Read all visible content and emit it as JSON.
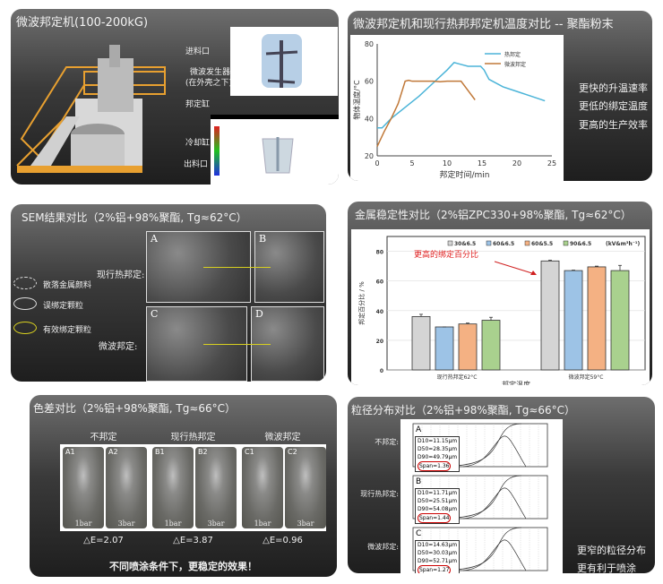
{
  "panel1": {
    "title": "微波邦定机(100-200kG)",
    "callouts": [
      "进料口",
      "微波发生器",
      "(在外壳之下)",
      "邦定缸",
      "冷却缸",
      "出料口"
    ]
  },
  "panel2": {
    "title": "微波邦定机和现行热邦邦定机温度对比 -- 聚酯粉末",
    "points": [
      "更快的升温速率",
      "更低的绑定温度",
      "更高的生产效率"
    ]
  },
  "panel3": {
    "title": "SEM结果对比（2%铝+98%聚酯, Tg≈62°C）",
    "row_labels": [
      "现行热邦定:",
      "微波邦定:"
    ],
    "image_labels": [
      "A",
      "B",
      "C",
      "D"
    ],
    "legend": [
      {
        "label": "散落金属颜料",
        "style": "dashed-white"
      },
      {
        "label": "误绑定颗粒",
        "style": "solid-white"
      },
      {
        "label": "有效绑定颗粒",
        "style": "solid-yellow"
      }
    ]
  },
  "panel4": {
    "title": "金属稳定性对比（2%铝ZPC330+98%聚酯, Tg≈62°C）"
  },
  "panel5": {
    "title": "色差对比（2%铝+98%聚酯, Tg≈66°C）",
    "groups": [
      {
        "label": "不邦定",
        "plates": [
          "A1",
          "A2"
        ],
        "pressures": [
          "1bar",
          "3bar"
        ],
        "delta_e": "△E=2.07"
      },
      {
        "label": "现行热邦定",
        "plates": [
          "B1",
          "B2"
        ],
        "pressures": [
          "1bar",
          "3bar"
        ],
        "delta_e": "△E=3.87"
      },
      {
        "label": "微波邦定",
        "plates": [
          "C1",
          "C2"
        ],
        "pressures": [
          "1bar",
          "3bar"
        ],
        "delta_e": "△E=0.96"
      }
    ],
    "footer": "不同喷涂条件下，更稳定的效果！"
  },
  "panel6": {
    "title": "粒径分布对比（2%铝+98%聚酯, Tg≈66°C）",
    "rows": [
      {
        "label": "不邦定:",
        "letter": "A",
        "d10": "D10=11.15μm",
        "d50": "D50=28.35μm",
        "d90": "D90=49.79μm",
        "span": "Span=1.36"
      },
      {
        "label": "现行热邦定:",
        "letter": "B",
        "d10": "D10=11.71μm",
        "d50": "D50=25.51μm",
        "d90": "D90=54.08μm",
        "span": "Span=1.44"
      },
      {
        "label": "微波邦定:",
        "letter": "C",
        "d10": "D10=14.63μm",
        "d50": "D50=30.03μm",
        "d90": "D90=52.71μm",
        "span": "Span=1.27"
      }
    ],
    "points": [
      "更窄的粒径分布",
      "更有利于喷涂"
    ]
  },
  "chart_data": [
    {
      "type": "line",
      "title": "",
      "xlabel": "邦定时间/min",
      "ylabel": "物体温度/°C",
      "xlim": [
        0,
        25
      ],
      "ylim": [
        20,
        80
      ],
      "xticks": [
        "0",
        "5",
        "10",
        "15",
        "20",
        "25"
      ],
      "yticks": [
        "20",
        "40",
        "60",
        "80"
      ],
      "legend_position": "top-right",
      "series": [
        {
          "name": "热邦定",
          "color": "#4bb4d8",
          "x": [
            0,
            0.7,
            2,
            4,
            6,
            8,
            10,
            11,
            12,
            13,
            14,
            14.8,
            15.3,
            16,
            18,
            20,
            22,
            24
          ],
          "y": [
            35,
            35,
            40,
            46,
            52,
            59,
            66,
            70,
            69,
            68,
            68,
            68,
            66,
            61,
            57,
            54.5,
            52,
            49.5
          ]
        },
        {
          "name": "微波邦定",
          "color": "#c07838",
          "x": [
            0,
            1,
            2,
            3,
            4,
            4.5,
            5,
            8,
            9,
            10,
            12,
            13,
            14
          ],
          "y": [
            25,
            33,
            40,
            48,
            60,
            60.5,
            60,
            60,
            59.7,
            60,
            60,
            55,
            50
          ]
        }
      ]
    },
    {
      "type": "bar",
      "title": "",
      "xlabel": "邦定温度",
      "ylabel": "邦定百分比 / %",
      "ylim": [
        0,
        90
      ],
      "yticks": [
        "0",
        "20",
        "40",
        "60",
        "80"
      ],
      "categories": [
        "现行热邦定62°C",
        "微波邦定59°C"
      ],
      "legend_unit": "(kV&m³h⁻¹)",
      "legend_position": "top",
      "annotation": "更高的绑定百分比",
      "grid": true,
      "series": [
        {
          "name": "30&6.5",
          "color": "#d4d4d4",
          "values": [
            36,
            73.5
          ],
          "errors": [
            1.5,
            0.5
          ]
        },
        {
          "name": "60&6.5",
          "color": "#9dc3e6",
          "values": [
            29,
            67
          ],
          "errors": [
            0,
            0.3
          ]
        },
        {
          "name": "60&5.5",
          "color": "#f4b183",
          "values": [
            31,
            69.5
          ],
          "errors": [
            0.6,
            0.5
          ]
        },
        {
          "name": "90&6.5",
          "color": "#a9d18e",
          "values": [
            33.5,
            67
          ],
          "errors": [
            2,
            3.5
          ]
        }
      ]
    }
  ]
}
